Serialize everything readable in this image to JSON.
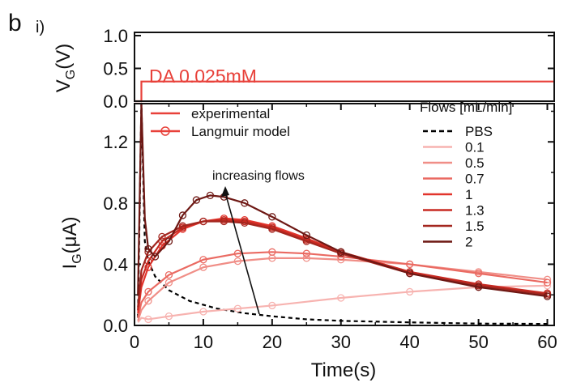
{
  "panel_label": "b",
  "sub_label": "i)",
  "chart_data": [
    {
      "type": "line",
      "ylabel_main": "V",
      "ylabel_sub": "G",
      "ylabel_unit": "(V)",
      "ylim": [
        0,
        1.0
      ],
      "yticks": [
        "1.0",
        "0.5",
        "0.0"
      ],
      "ytick_values": [
        1.0,
        0.5,
        0.0
      ],
      "annotation": "DA 0.025mM",
      "color": "#e8413a",
      "series": [
        {
          "x": [
            0,
            1,
            1,
            61
          ],
          "y": [
            0,
            0,
            0.3,
            0.3
          ]
        }
      ]
    },
    {
      "type": "line",
      "xlabel": "Time(s)",
      "ylabel_main": "I",
      "ylabel_sub": "G",
      "ylabel_unit": "(μA)",
      "xlim": [
        0,
        61
      ],
      "ylim": [
        0,
        1.45
      ],
      "xticks": [
        "0",
        "10",
        "20",
        "30",
        "40",
        "50",
        "60"
      ],
      "xtick_values": [
        0,
        10,
        20,
        30,
        40,
        50,
        60
      ],
      "yticks": [
        "0.0",
        "0.4",
        "0.8",
        "1.2"
      ],
      "ytick_values": [
        0.0,
        0.4,
        0.8,
        1.2
      ],
      "annotation": "increasing flows",
      "legend_left": [
        {
          "label": "experimental",
          "style": "line"
        },
        {
          "label": "Langmuir model",
          "style": "line-marker"
        }
      ],
      "legend_title": "Flows [mL/min]",
      "series": [
        {
          "name": "PBS",
          "color": "#000000",
          "dashed": true,
          "x": [
            0.5,
            1,
            1.5,
            2,
            3,
            5,
            8,
            12,
            16,
            20,
            25,
            30,
            40,
            50,
            60
          ],
          "y": [
            0.05,
            1.5,
            0.55,
            0.42,
            0.32,
            0.23,
            0.16,
            0.11,
            0.08,
            0.06,
            0.04,
            0.03,
            0.02,
            0.012,
            0.01
          ]
        },
        {
          "name": "0.1",
          "color": "#f7b3b0",
          "x": [
            0.5,
            1,
            2,
            5,
            10,
            15,
            20,
            30,
            40,
            50,
            60
          ],
          "y": [
            0.02,
            0.05,
            0.04,
            0.06,
            0.09,
            0.11,
            0.13,
            0.18,
            0.22,
            0.25,
            0.26
          ]
        },
        {
          "name": "0.5",
          "color": "#f08e87",
          "x": [
            0.5,
            1,
            2,
            5,
            10,
            15,
            20,
            25,
            30,
            40,
            50,
            60
          ],
          "y": [
            0.03,
            0.1,
            0.16,
            0.28,
            0.38,
            0.42,
            0.44,
            0.44,
            0.43,
            0.4,
            0.35,
            0.3
          ]
        },
        {
          "name": "0.7",
          "color": "#ea6a62",
          "x": [
            0.5,
            1,
            2,
            5,
            10,
            15,
            20,
            25,
            30,
            40,
            50,
            60
          ],
          "y": [
            0.05,
            0.15,
            0.22,
            0.33,
            0.43,
            0.47,
            0.48,
            0.47,
            0.45,
            0.4,
            0.34,
            0.28
          ]
        },
        {
          "name": "1",
          "color": "#e2342c",
          "x": [
            0.5,
            1,
            2,
            4,
            7,
            10,
            13,
            16,
            20,
            25,
            30,
            40,
            50,
            60
          ],
          "y": [
            0.08,
            0.25,
            0.38,
            0.52,
            0.63,
            0.68,
            0.7,
            0.69,
            0.65,
            0.57,
            0.48,
            0.35,
            0.26,
            0.21
          ]
        },
        {
          "name": "1.3",
          "color": "#c82a22",
          "x": [
            0.5,
            1,
            2,
            4,
            7,
            10,
            13,
            16,
            20,
            25,
            30,
            40,
            50,
            60
          ],
          "y": [
            0.1,
            0.3,
            0.42,
            0.55,
            0.64,
            0.68,
            0.69,
            0.68,
            0.64,
            0.56,
            0.48,
            0.35,
            0.27,
            0.21
          ]
        },
        {
          "name": "1.5",
          "color": "#a3261f",
          "x": [
            0.5,
            1,
            2,
            4,
            7,
            10,
            13,
            16,
            20,
            25,
            30,
            40,
            50,
            60
          ],
          "y": [
            0.12,
            0.36,
            0.48,
            0.58,
            0.65,
            0.68,
            0.68,
            0.67,
            0.63,
            0.55,
            0.47,
            0.34,
            0.26,
            0.2
          ]
        },
        {
          "name": "2",
          "color": "#6e1814",
          "x": [
            0.5,
            1,
            1.5,
            2,
            3,
            5,
            7,
            9,
            11,
            13,
            16,
            20,
            25,
            30,
            40,
            50,
            60
          ],
          "y": [
            0.2,
            1.45,
            0.7,
            0.5,
            0.45,
            0.55,
            0.72,
            0.82,
            0.85,
            0.84,
            0.8,
            0.71,
            0.59,
            0.48,
            0.34,
            0.25,
            0.19
          ]
        }
      ]
    }
  ]
}
